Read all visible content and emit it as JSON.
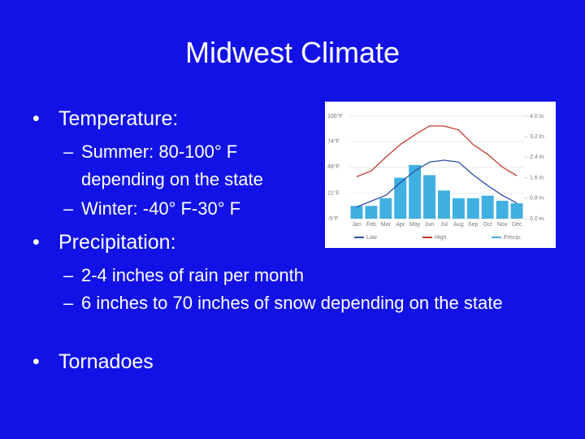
{
  "slide": {
    "title": "Midwest Climate",
    "bullets": [
      {
        "text": "Temperature:",
        "sub": [
          "Summer:  80-100° F depending on the state",
          "Winter:  -40° F-30° F"
        ]
      },
      {
        "text": "Precipitation:",
        "sub": [
          "2-4 inches of rain per month",
          "6 inches to 70 inches of snow depending on the state"
        ]
      },
      {
        "text": "Tornadoes",
        "sub": []
      }
    ]
  },
  "chart_data": {
    "type": "climograph",
    "categories": [
      "Jan",
      "Feb",
      "Mar",
      "Apr",
      "May",
      "Jun",
      "Jul",
      "Aug",
      "Sep",
      "Oct",
      "Nov",
      "Dec"
    ],
    "series": [
      {
        "name": "Low",
        "color": "#2c4fa6",
        "type": "line",
        "values": [
          7,
          13,
          19,
          32,
          44,
          53,
          55,
          53,
          40,
          29,
          19,
          11
        ]
      },
      {
        "name": "High",
        "color": "#c0392b",
        "type": "line",
        "values": [
          38,
          44,
          58,
          71,
          81,
          90,
          90,
          86,
          71,
          61,
          48,
          39
        ]
      },
      {
        "name": "Precip.",
        "color": "#3fb0e0",
        "type": "bar",
        "axis": "y2",
        "values": [
          0.5,
          0.5,
          0.8,
          1.6,
          2.1,
          1.7,
          1.1,
          0.8,
          0.8,
          0.9,
          0.7,
          0.6
        ]
      }
    ],
    "ylim": [
      -5,
      100
    ],
    "yticks": [
      {
        "value": 100,
        "label": "100°F"
      },
      {
        "value": 74,
        "label": "74°F"
      },
      {
        "value": 48,
        "label": "48°F"
      },
      {
        "value": 21,
        "label": "21°F"
      },
      {
        "value": -5,
        "label": "-5°F"
      }
    ],
    "y2lim": [
      0,
      4
    ],
    "y2ticks": [
      {
        "value": 4,
        "label": "4.0 in."
      },
      {
        "value": 3.2,
        "label": "3.2 in."
      },
      {
        "value": 2.4,
        "label": "2.4 in."
      },
      {
        "value": 1.6,
        "label": "1.6 in."
      },
      {
        "value": 0.8,
        "label": "0.8 in."
      },
      {
        "value": 0,
        "label": "0.0 in."
      }
    ],
    "grid": true
  }
}
